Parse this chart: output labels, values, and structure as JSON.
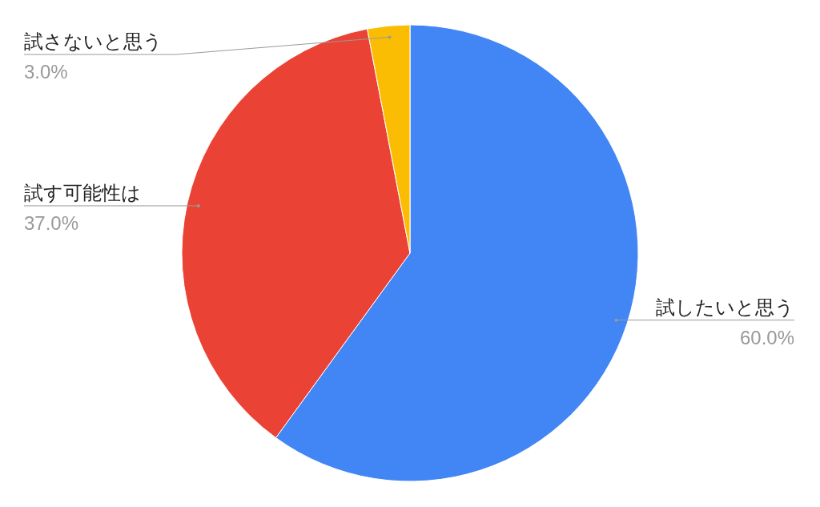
{
  "chart_data": {
    "type": "pie",
    "categories": [
      "試したいと思う",
      "試す可能性は",
      "試さないと思う"
    ],
    "values": [
      60,
      37,
      3
    ],
    "colors": [
      "#4285f4",
      "#ea4335",
      "#fbbc04"
    ],
    "value_labels": [
      "60.0%",
      "37.0%",
      "3.0%"
    ]
  }
}
